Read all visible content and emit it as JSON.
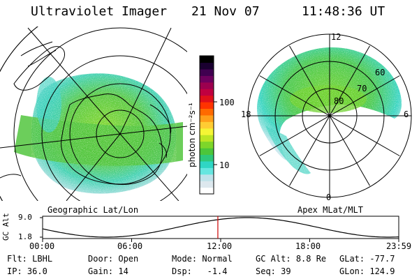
{
  "header": {
    "instrument": "Ultraviolet Imager",
    "date": "21 Nov 07",
    "time": "11:48:36 UT"
  },
  "left_map": {
    "caption": "Geographic Lat/Lon"
  },
  "right_map": {
    "caption": "Apex MLat/MLT",
    "lat_labels": [
      "80",
      "70",
      "60"
    ],
    "mlt_labels": {
      "top": "12",
      "right": "6",
      "bottom": "0",
      "left": "18"
    }
  },
  "colorbar": {
    "unit_label": "photon cm⁻²s⁻¹",
    "tick_labels": [
      "100",
      "10"
    ],
    "colors": [
      "#ffffff",
      "#dde8ee",
      "#bfe2ea",
      "#66e6e0",
      "#2fd6c4",
      "#2ec87a",
      "#4cc63a",
      "#7ed62a",
      "#bde524",
      "#f5f535",
      "#ffcc33",
      "#ff9f1a",
      "#ff6a00",
      "#ff3300",
      "#e0101a",
      "#c00040",
      "#9c004f",
      "#6e005e",
      "#400050",
      "#1a0030",
      "#000000"
    ]
  },
  "timeline": {
    "y_axis_label": "GC Alt",
    "y_ticks": [
      "9.0",
      "1.8"
    ],
    "x_ticks": [
      "00:00",
      "06:00",
      "12:00",
      "18:00",
      "23:59"
    ],
    "marker_hour": 11.81,
    "marker_color": "#cc0000"
  },
  "footer": {
    "row1": [
      {
        "key": "Flt:",
        "value": "LBHL"
      },
      {
        "key": "Door:",
        "value": "Open"
      },
      {
        "key": "Mode:",
        "value": "Normal"
      },
      {
        "key": "GC Alt:",
        "value": "8.8 Re"
      },
      {
        "key": "GLat:",
        "value": "-77.7"
      }
    ],
    "row2": [
      {
        "key": "IP:",
        "value": "36.0"
      },
      {
        "key": "Gain:",
        "value": "14"
      },
      {
        "key": "Dsp:",
        "value": "-1.4"
      },
      {
        "key": "Seq:",
        "value": "39"
      },
      {
        "key": "GLon:",
        "value": "124.9"
      }
    ]
  }
}
